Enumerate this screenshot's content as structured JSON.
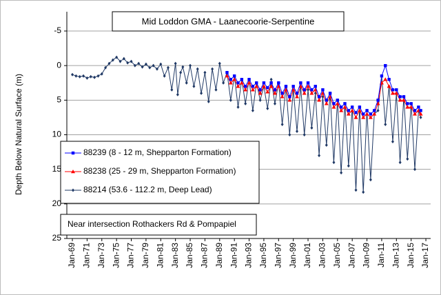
{
  "chart_data": {
    "type": "line",
    "title": "Mid Loddon GMA  - Laanecoorie-Serpentine",
    "y_label": "Depth Below Natural Surface (m)",
    "annotation": "Near intersection Rothackers Rd & Pompapiel",
    "y_inverted": true,
    "grid": true,
    "legend": "left",
    "ylim": [
      -5,
      25
    ],
    "yticks": [
      -5,
      0,
      5,
      10,
      15,
      20,
      25
    ],
    "xlim": [
      1968.25,
      2017.65
    ],
    "xticks": [
      {
        "value": 1969,
        "label": "Jan-69"
      },
      {
        "value": 1971,
        "label": "Jan-71"
      },
      {
        "value": 1973,
        "label": "Jan-73"
      },
      {
        "value": 1975,
        "label": "Jan-75"
      },
      {
        "value": 1977,
        "label": "Jan-77"
      },
      {
        "value": 1979,
        "label": "Jan-79"
      },
      {
        "value": 1981,
        "label": "Jan-81"
      },
      {
        "value": 1983,
        "label": "Jan-83"
      },
      {
        "value": 1985,
        "label": "Jan-85"
      },
      {
        "value": 1987,
        "label": "Jan-87"
      },
      {
        "value": 1989,
        "label": "Jan-89"
      },
      {
        "value": 1991,
        "label": "Jan-91"
      },
      {
        "value": 1993,
        "label": "Jan-93"
      },
      {
        "value": 1995,
        "label": "Jan-95"
      },
      {
        "value": 1997,
        "label": "Jan-97"
      },
      {
        "value": 1999,
        "label": "Jan-99"
      },
      {
        "value": 2001,
        "label": "Jan-01"
      },
      {
        "value": 2003,
        "label": "Jan-03"
      },
      {
        "value": 2005,
        "label": "Jan-05"
      },
      {
        "value": 2007,
        "label": "Jan-07"
      },
      {
        "value": 2009,
        "label": "Jan-09"
      },
      {
        "value": 2011,
        "label": "Jan-11"
      },
      {
        "value": 2013,
        "label": "Jan-13"
      },
      {
        "value": 2015,
        "label": "Jan-15"
      },
      {
        "value": 2017,
        "label": "Jan-17"
      }
    ],
    "series": [
      {
        "name": "88239 (8 - 12 m, Shepparton Formation)",
        "color": "#0000ff",
        "marker": "square",
        "x": [
          1990,
          1990.5,
          1991,
          1991.5,
          1992,
          1992.5,
          1993,
          1993.5,
          1994,
          1994.5,
          1995,
          1995.5,
          1996,
          1996.5,
          1997,
          1997.5,
          1998,
          1998.5,
          1999,
          1999.5,
          2000,
          2000.5,
          2001,
          2001.5,
          2002,
          2002.5,
          2003,
          2003.5,
          2004,
          2004.5,
          2005,
          2005.5,
          2006,
          2006.5,
          2007,
          2007.5,
          2008,
          2008.5,
          2009,
          2009.5,
          2010,
          2010.5,
          2011,
          2011.5,
          2012,
          2012.5,
          2013,
          2013.5,
          2014,
          2014.5,
          2015,
          2015.5,
          2016,
          2016.3
        ],
        "values": [
          1.0,
          2.0,
          1.5,
          2.5,
          2.0,
          3.0,
          2.0,
          3.0,
          2.5,
          3.5,
          2.5,
          3.2,
          2.5,
          3.5,
          2.5,
          4.0,
          3.0,
          4.5,
          3.0,
          4.0,
          2.5,
          3.5,
          2.5,
          3.5,
          3.0,
          4.5,
          3.5,
          5.0,
          4.0,
          5.5,
          5.0,
          6.0,
          5.5,
          6.5,
          6.0,
          6.8,
          6.0,
          7.0,
          6.5,
          7.0,
          6.5,
          5.0,
          1.5,
          0.0,
          2.0,
          3.5,
          3.5,
          4.5,
          4.5,
          5.5,
          5.5,
          6.5,
          6.0,
          6.5
        ]
      },
      {
        "name": "88238 (25 - 29 m, Shepparton Formation)",
        "color": "#ff0000",
        "marker": "triangle",
        "x": [
          1990,
          1990.5,
          1991,
          1991.5,
          1992,
          1992.5,
          1993,
          1993.5,
          1994,
          1994.5,
          1995,
          1995.5,
          1996,
          1996.5,
          1997,
          1997.5,
          1998,
          1998.5,
          1999,
          1999.5,
          2000,
          2000.5,
          2001,
          2001.5,
          2002,
          2002.5,
          2003,
          2003.5,
          2004,
          2004.5,
          2005,
          2005.5,
          2006,
          2006.5,
          2007,
          2007.5,
          2008,
          2008.5,
          2009,
          2009.5,
          2010,
          2010.5,
          2011,
          2011.5,
          2012,
          2012.5,
          2013,
          2013.5,
          2014,
          2014.5,
          2015,
          2015.5,
          2016,
          2016.3
        ],
        "values": [
          1.5,
          2.5,
          2.0,
          3.0,
          2.5,
          3.5,
          2.5,
          3.5,
          3.0,
          4.0,
          3.0,
          3.8,
          3.0,
          4.0,
          3.0,
          4.5,
          3.5,
          5.0,
          3.5,
          4.5,
          3.0,
          4.0,
          3.0,
          4.0,
          3.5,
          5.0,
          4.0,
          5.5,
          4.5,
          6.0,
          5.5,
          6.5,
          6.0,
          7.0,
          6.5,
          7.5,
          6.5,
          7.5,
          7.0,
          7.5,
          7.0,
          5.5,
          2.5,
          2.0,
          3.0,
          4.0,
          4.0,
          5.0,
          5.0,
          6.0,
          6.0,
          7.0,
          6.5,
          7.0
        ]
      },
      {
        "name": "88214 (53.6 - 112.2 m, Deep Lead)",
        "color": "#1f3864",
        "marker": "diamond",
        "x": [
          1969,
          1969.5,
          1970,
          1970.5,
          1971,
          1971.5,
          1972,
          1972.5,
          1973,
          1973.5,
          1974,
          1974.5,
          1975,
          1975.5,
          1976,
          1976.5,
          1977,
          1977.5,
          1978,
          1978.5,
          1979,
          1979.5,
          1980,
          1980.5,
          1981,
          1981.5,
          1982,
          1982.5,
          1983,
          1983.3,
          1983.7,
          1984,
          1984.5,
          1985,
          1985.5,
          1986,
          1986.5,
          1987,
          1987.5,
          1988,
          1988.5,
          1989,
          1989.5,
          1990,
          1990.5,
          1991,
          1991.5,
          1992,
          1992.5,
          1993,
          1993.5,
          1994,
          1994.5,
          1995,
          1995.5,
          1996,
          1996.5,
          1997,
          1997.5,
          1998,
          1998.5,
          1999,
          1999.5,
          2000,
          2000.5,
          2001,
          2001.5,
          2002,
          2002.5,
          2003,
          2003.5,
          2004,
          2004.5,
          2005,
          2005.5,
          2006,
          2006.5,
          2007,
          2007.5,
          2008,
          2008.5,
          2009,
          2009.5,
          2010,
          2010.5,
          2011,
          2011.5,
          2012,
          2012.5,
          2013,
          2013.5,
          2014,
          2014.5,
          2015,
          2015.5,
          2016,
          2016.3
        ],
        "values": [
          1.3,
          1.5,
          1.6,
          1.5,
          1.8,
          1.6,
          1.7,
          1.5,
          1.2,
          0.3,
          -0.3,
          -0.8,
          -1.2,
          -0.6,
          -1.0,
          -0.4,
          -0.6,
          0.0,
          -0.3,
          0.2,
          -0.2,
          0.3,
          0.0,
          0.5,
          -0.2,
          1.5,
          0.3,
          3.5,
          -0.3,
          4.2,
          1.0,
          0.2,
          2.5,
          0.0,
          3.0,
          0.5,
          4.0,
          1.0,
          5.2,
          0.5,
          3.5,
          -0.3,
          2.5,
          1.0,
          5.0,
          1.5,
          6.0,
          2.0,
          5.5,
          2.0,
          6.5,
          2.5,
          5.0,
          3.0,
          6.2,
          2.0,
          5.5,
          2.5,
          8.5,
          3.0,
          10.0,
          3.5,
          9.5,
          3.0,
          10.0,
          3.5,
          9.0,
          4.0,
          13.0,
          4.5,
          11.5,
          4.0,
          14.0,
          5.0,
          15.5,
          5.5,
          14.5,
          6.0,
          18.0,
          6.0,
          18.3,
          6.5,
          16.5,
          7.0,
          6.5,
          1.5,
          8.5,
          3.0,
          11.0,
          4.0,
          14.0,
          4.5,
          13.5,
          5.5,
          15.0,
          6.5,
          7.5
        ]
      }
    ]
  }
}
